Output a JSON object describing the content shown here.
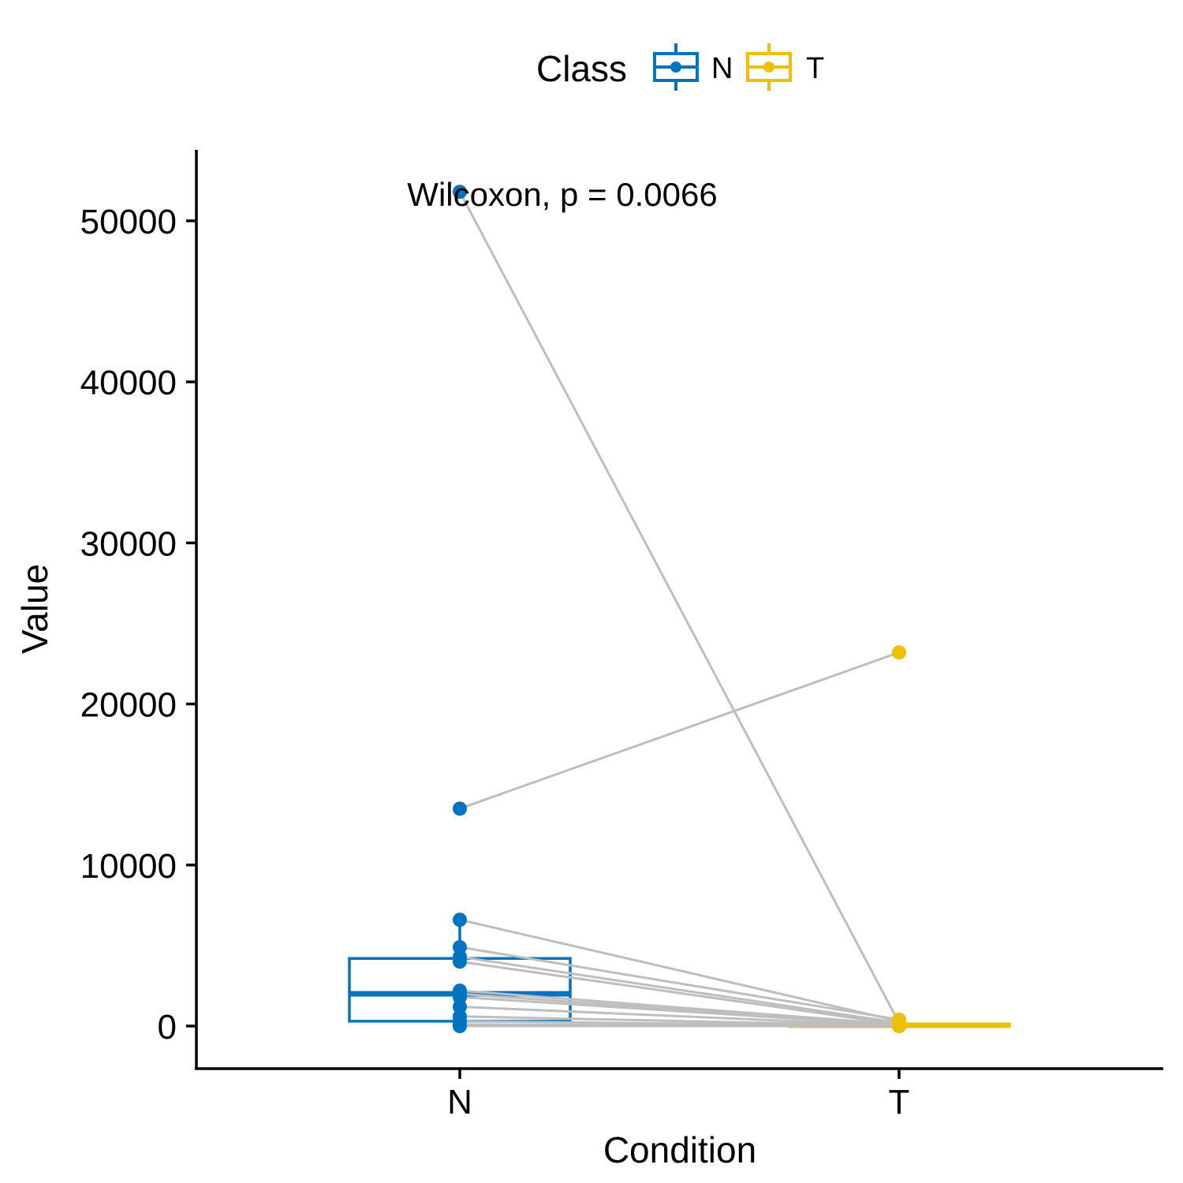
{
  "chart_data": {
    "type": "box",
    "subtype": "paired boxplot with points",
    "xlabel": "Condition",
    "ylabel": "Value",
    "categories": [
      "N",
      "T"
    ],
    "ylim": [
      -2500,
      54000
    ],
    "yticks": [
      0,
      10000,
      20000,
      30000,
      40000,
      50000
    ],
    "yticklabels": [
      "0",
      "10000",
      "20000",
      "30000",
      "40000",
      "50000"
    ],
    "legend": {
      "title": "Class",
      "position": "top",
      "entries": [
        {
          "label": "N",
          "color": "#0073C2"
        },
        {
          "label": "T",
          "color": "#EFC000"
        }
      ]
    },
    "annotation": "Wilcoxon, p = 0.0066",
    "grid": false,
    "line_color": "#BEBEBE",
    "boxes": [
      {
        "category": "N",
        "color": "#0073C2",
        "q1": 300,
        "median": 2000,
        "q3": 4200,
        "whisker_low": 0,
        "whisker_high": 6600
      },
      {
        "category": "T",
        "color": "#EFC000",
        "q1": 0,
        "median": 50,
        "q3": 120,
        "whisker_low": 0,
        "whisker_high": 300
      }
    ],
    "pairs": [
      {
        "N": 51800,
        "T": 200
      },
      {
        "N": 13500,
        "T": 23200
      },
      {
        "N": 6600,
        "T": 300
      },
      {
        "N": 4900,
        "T": 400
      },
      {
        "N": 4300,
        "T": 200
      },
      {
        "N": 4000,
        "T": 100
      },
      {
        "N": 2200,
        "T": 100
      },
      {
        "N": 2000,
        "T": 50
      },
      {
        "N": 1800,
        "T": 50
      },
      {
        "N": 1200,
        "T": 20
      },
      {
        "N": 600,
        "T": 20
      },
      {
        "N": 300,
        "T": 10
      },
      {
        "N": 100,
        "T": 0
      },
      {
        "N": 0,
        "T": 0
      }
    ]
  }
}
